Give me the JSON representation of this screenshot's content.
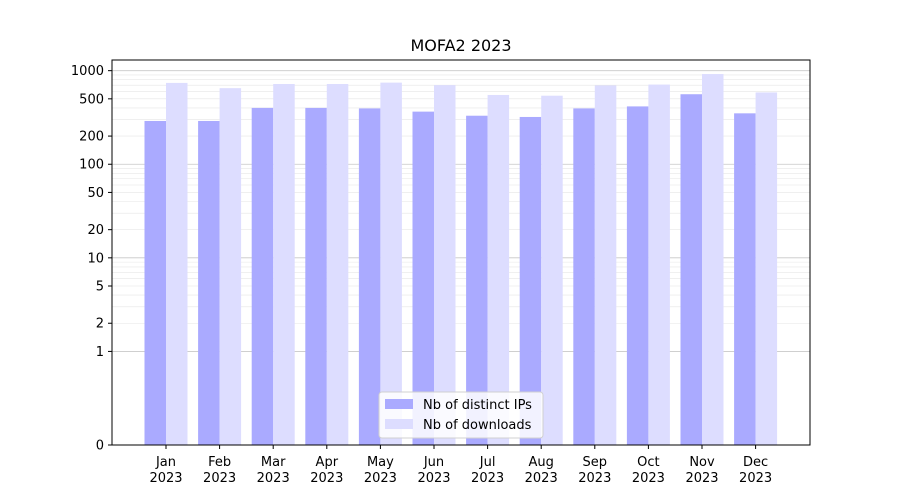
{
  "chart_data": {
    "type": "bar",
    "title": "MOFA2 2023",
    "xlabel": "",
    "ylabel": "",
    "y_scale": "symlog",
    "ylim": [
      0,
      1300
    ],
    "y_ticks": [
      0,
      1,
      2,
      5,
      10,
      20,
      50,
      100,
      200,
      500,
      1000
    ],
    "grid": true,
    "legend_position": "bottom-center",
    "categories": [
      [
        "Jan",
        "2023"
      ],
      [
        "Feb",
        "2023"
      ],
      [
        "Mar",
        "2023"
      ],
      [
        "Apr",
        "2023"
      ],
      [
        "May",
        "2023"
      ],
      [
        "Jun",
        "2023"
      ],
      [
        "Jul",
        "2023"
      ],
      [
        "Aug",
        "2023"
      ],
      [
        "Sep",
        "2023"
      ],
      [
        "Oct",
        "2023"
      ],
      [
        "Nov",
        "2023"
      ],
      [
        "Dec",
        "2023"
      ]
    ],
    "series": [
      {
        "name": "Nb of distinct IPs",
        "color": "#aaaaff",
        "values": [
          290,
          290,
          400,
          400,
          395,
          365,
          330,
          320,
          395,
          415,
          560,
          350
        ]
      },
      {
        "name": "Nb of downloads",
        "color": "#ddddff",
        "values": [
          740,
          650,
          720,
          720,
          745,
          700,
          550,
          540,
          695,
          710,
          920,
          585
        ]
      }
    ]
  }
}
